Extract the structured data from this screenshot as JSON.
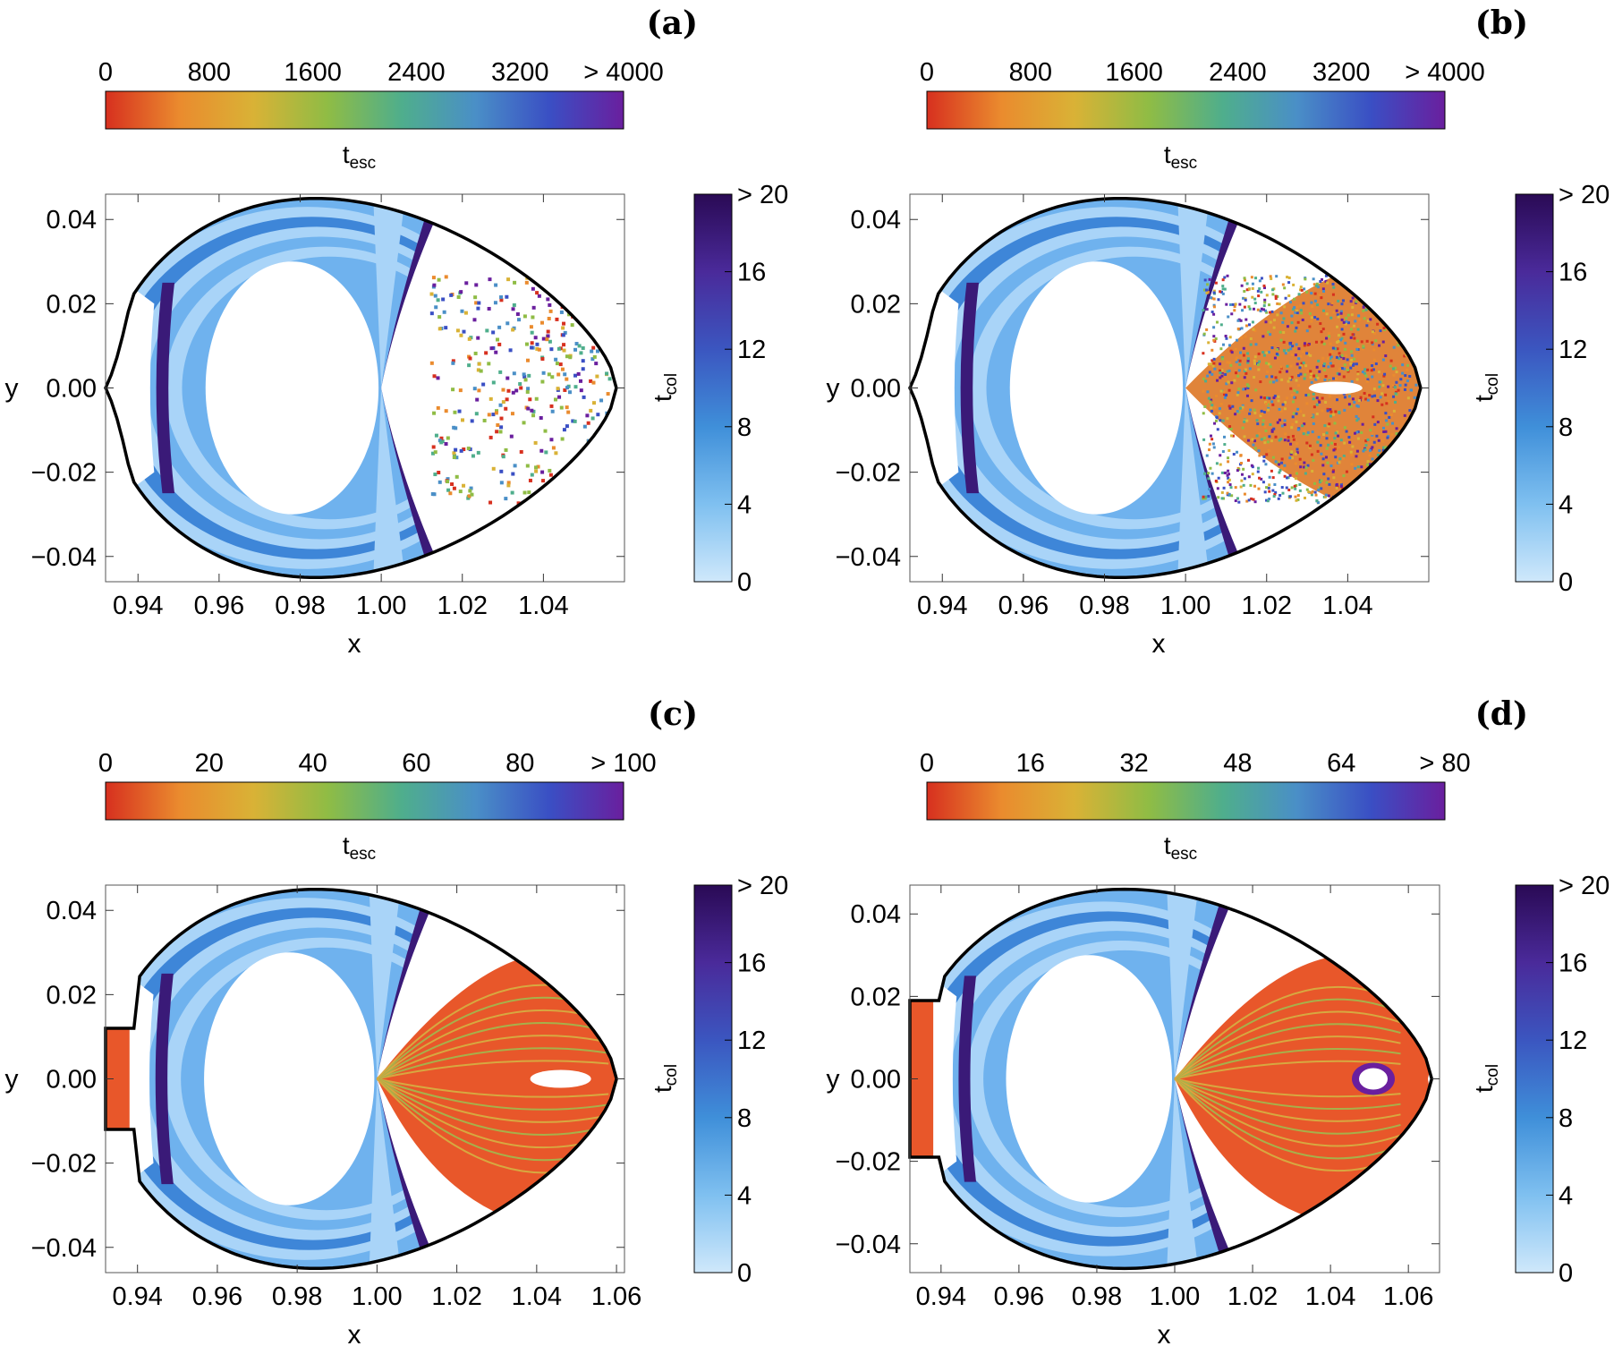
{
  "colors": {
    "esc_gradient": [
      "#d7301f",
      "#ea8b2e",
      "#d9b236",
      "#8fbc45",
      "#4fae8c",
      "#4a8fc7",
      "#3a4fc4",
      "#6a1f9e"
    ],
    "col_gradient": [
      "#cfe8fb",
      "#7fc0f0",
      "#3f8fd9",
      "#3b56c0",
      "#4a2a9a",
      "#2a0a55"
    ],
    "boundary": "#000000",
    "region_light": "#a9d4f8",
    "region_mid": "#6fb2ee",
    "region_dark": "#3e86d8",
    "region_deep": "#3a1a78",
    "orange_fill": "#e8572a"
  },
  "chart_data": [
    {
      "type": "heatmap",
      "panel_label": "(a)",
      "esc_colorbar": {
        "label": "t",
        "label_sub": "esc",
        "ticks": [
          "0",
          "800",
          "1600",
          "2400",
          "3200",
          "> 4000"
        ],
        "range": [
          0,
          4000
        ]
      },
      "col_colorbar": {
        "label": "t",
        "label_sub": "col",
        "ticks": [
          "0",
          "4",
          "8",
          "12",
          "16",
          "> 20"
        ],
        "range": [
          0,
          20
        ]
      },
      "xlabel": "x",
      "ylabel": "y",
      "xlim": [
        0.932,
        1.06
      ],
      "ylim": [
        -0.046,
        0.046
      ],
      "xticks": [
        0.94,
        0.96,
        0.98,
        1.0,
        1.02,
        1.04
      ],
      "xtick_labels": [
        "0.94",
        "0.96",
        "0.98",
        "1.00",
        "1.02",
        "1.04"
      ],
      "yticks": [
        -0.04,
        -0.02,
        0.0,
        0.02,
        0.04
      ],
      "ytick_labels": [
        "−0.04",
        "−0.02",
        "0.00",
        "0.02",
        "0.04"
      ],
      "zvc": {
        "kind": "closed",
        "x_left": 0.932,
        "x_right": 1.058,
        "y_max": 0.045
      },
      "escape_region": "scatter"
    },
    {
      "type": "heatmap",
      "panel_label": "(b)",
      "esc_colorbar": {
        "label": "t",
        "label_sub": "esc",
        "ticks": [
          "0",
          "800",
          "1600",
          "2400",
          "3200",
          "> 4000"
        ],
        "range": [
          0,
          4000
        ]
      },
      "col_colorbar": {
        "label": "t",
        "label_sub": "col",
        "ticks": [
          "0",
          "4",
          "8",
          "12",
          "16",
          "> 20"
        ],
        "range": [
          0,
          20
        ]
      },
      "xlabel": "x",
      "ylabel": "y",
      "xlim": [
        0.932,
        1.06
      ],
      "ylim": [
        -0.046,
        0.046
      ],
      "xticks": [
        0.94,
        0.96,
        0.98,
        1.0,
        1.02,
        1.04
      ],
      "xtick_labels": [
        "0.94",
        "0.96",
        "0.98",
        "1.00",
        "1.02",
        "1.04"
      ],
      "yticks": [
        -0.04,
        -0.02,
        0.0,
        0.02,
        0.04
      ],
      "ytick_labels": [
        "−0.04",
        "−0.02",
        "0.00",
        "0.02",
        "0.04"
      ],
      "zvc": {
        "kind": "closed",
        "x_left": 0.932,
        "x_right": 1.058,
        "y_max": 0.045
      },
      "escape_region": "noise"
    },
    {
      "type": "heatmap",
      "panel_label": "(c)",
      "esc_colorbar": {
        "label": "t",
        "label_sub": "esc",
        "ticks": [
          "0",
          "20",
          "40",
          "60",
          "80",
          "> 100"
        ],
        "range": [
          0,
          100
        ]
      },
      "col_colorbar": {
        "label": "t",
        "label_sub": "col",
        "ticks": [
          "0",
          "4",
          "8",
          "12",
          "16",
          "> 20"
        ],
        "range": [
          0,
          20
        ]
      },
      "xlabel": "x",
      "ylabel": "y",
      "xlim": [
        0.932,
        1.062
      ],
      "ylim": [
        -0.046,
        0.046
      ],
      "xticks": [
        0.94,
        0.96,
        0.98,
        1.0,
        1.02,
        1.04,
        1.06
      ],
      "xtick_labels": [
        "0.94",
        "0.96",
        "0.98",
        "1.00",
        "1.02",
        "1.04",
        "1.06"
      ],
      "yticks": [
        -0.04,
        -0.02,
        0.0,
        0.02,
        0.04
      ],
      "ytick_labels": [
        "−0.04",
        "−0.02",
        "0.00",
        "0.02",
        "0.04"
      ],
      "zvc": {
        "kind": "open",
        "x_left": 0.932,
        "x_right": 1.06,
        "y_max": 0.045,
        "throat": 0.012
      },
      "escape_region": "bands"
    },
    {
      "type": "heatmap",
      "panel_label": "(d)",
      "esc_colorbar": {
        "label": "t",
        "label_sub": "esc",
        "ticks": [
          "0",
          "16",
          "32",
          "48",
          "64",
          "> 80"
        ],
        "range": [
          0,
          80
        ]
      },
      "col_colorbar": {
        "label": "t",
        "label_sub": "col",
        "ticks": [
          "0",
          "4",
          "8",
          "12",
          "16",
          "> 20"
        ],
        "range": [
          0,
          20
        ]
      },
      "xlabel": "x",
      "ylabel": "y",
      "xlim": [
        0.932,
        1.068
      ],
      "ylim": [
        -0.047,
        0.047
      ],
      "xticks": [
        0.94,
        0.96,
        0.98,
        1.0,
        1.02,
        1.04,
        1.06
      ],
      "xtick_labels": [
        "0.94",
        "0.96",
        "0.98",
        "1.00",
        "1.02",
        "1.04",
        "1.06"
      ],
      "yticks": [
        -0.04,
        -0.02,
        0.0,
        0.02,
        0.04
      ],
      "ytick_labels": [
        "−0.04",
        "−0.02",
        "0.00",
        "0.02",
        "0.04"
      ],
      "zvc": {
        "kind": "open",
        "x_left": 0.932,
        "x_right": 1.066,
        "y_max": 0.046,
        "throat": 0.019
      },
      "escape_region": "swirl"
    }
  ]
}
